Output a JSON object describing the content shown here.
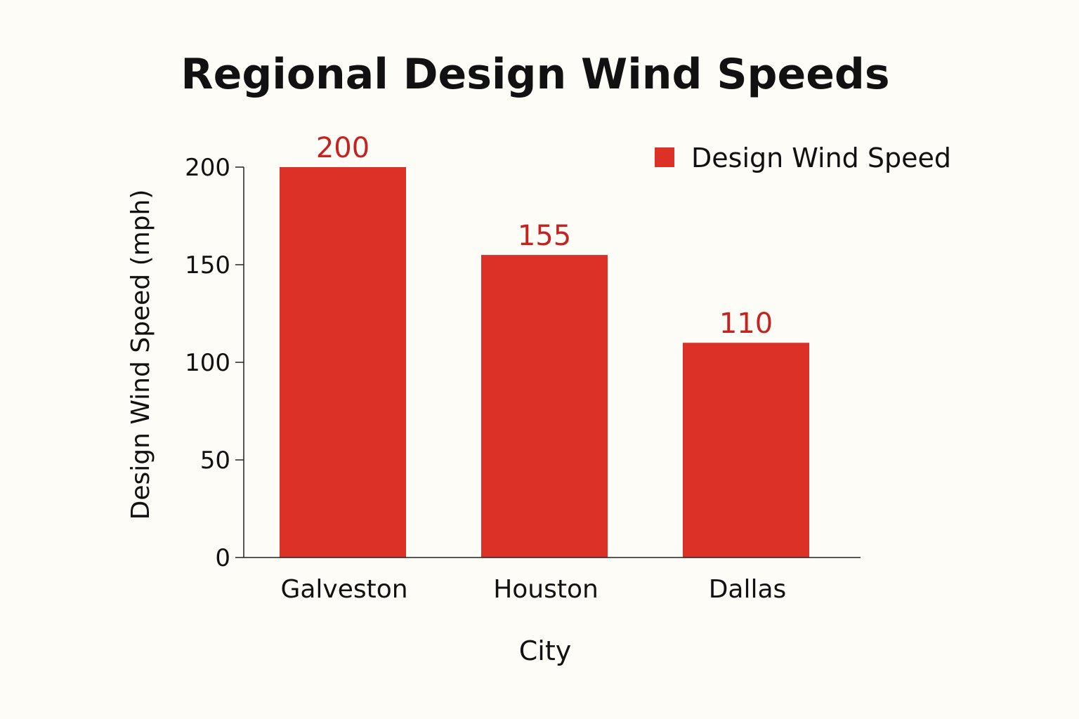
{
  "chart_data": {
    "type": "bar",
    "title": "Regional Design Wind Speeds",
    "xlabel": "City",
    "ylabel": "Design Wind Speed (mph)",
    "categories": [
      "Galveston",
      "Houston",
      "Dallas"
    ],
    "series": [
      {
        "name": "Design Wind Speed",
        "values": [
          200,
          155,
          110
        ],
        "color": "#dc3126"
      }
    ],
    "data_labels": [
      "200",
      "155",
      "110"
    ],
    "data_label_color": "#c4231f",
    "ylim": [
      0,
      200
    ],
    "yticks": [
      0,
      50,
      100,
      150,
      200
    ],
    "grid": false,
    "legend_position": "top-right"
  }
}
